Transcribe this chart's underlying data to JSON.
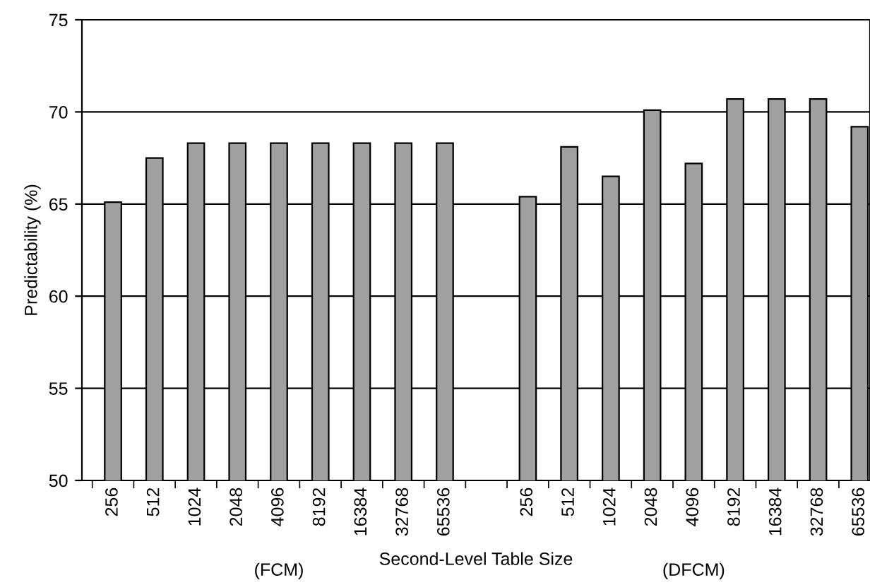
{
  "chart_data": {
    "type": "bar",
    "ylabel": "Predictability (%)",
    "xlabel": "Second-Level Table Size",
    "categories": [
      "256",
      "512",
      "1024",
      "2048",
      "4096",
      "8192",
      "16384",
      "32768",
      "65536",
      null,
      "256",
      "512",
      "1024",
      "2048",
      "4096",
      "8192",
      "16384",
      "32768",
      "65536"
    ],
    "values": [
      65.1,
      67.5,
      68.3,
      68.3,
      68.3,
      68.3,
      68.3,
      68.3,
      68.3,
      null,
      65.4,
      68.1,
      66.5,
      70.1,
      67.2,
      70.7,
      70.7,
      70.7,
      69.2
    ],
    "color": "#a0a0a0",
    "ylim": [
      50,
      75
    ],
    "yticks": [
      50,
      55,
      60,
      65,
      70,
      75
    ],
    "grid": "y",
    "legend": false,
    "annotations": [
      "(FCM)",
      "(DFCM)"
    ]
  }
}
